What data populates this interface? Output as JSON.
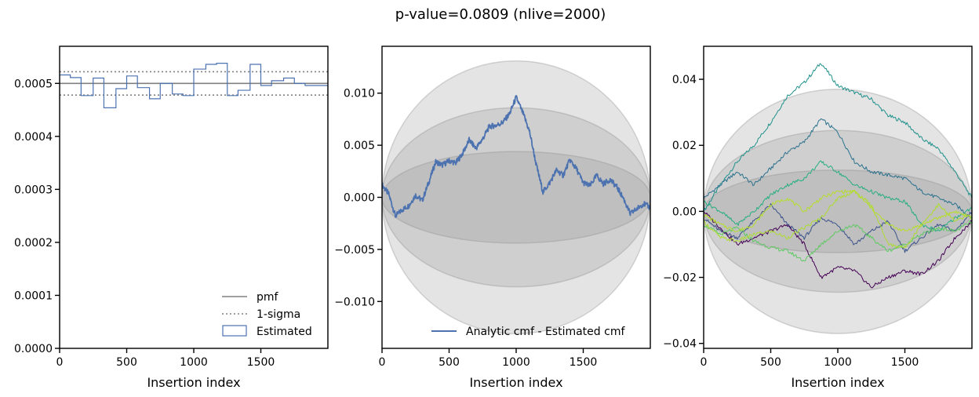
{
  "suptitle": "p-value=0.0809 (nlive=2000)",
  "chart_data": [
    {
      "type": "step",
      "xlabel": "Insertion index",
      "xlim": [
        0,
        2000
      ],
      "ylim": [
        0,
        0.00057
      ],
      "xticks": [
        "0",
        "500",
        "1000",
        "1500"
      ],
      "yticks": [
        "0.0000",
        "0.0001",
        "0.0002",
        "0.0003",
        "0.0004",
        "0.0005"
      ],
      "pmf": 0.0005,
      "sigma_band": [
        0.000478,
        0.000522
      ],
      "estimated": {
        "bin_edges": [
          0,
          80,
          160,
          250,
          330,
          420,
          500,
          580,
          670,
          750,
          840,
          920,
          1000,
          1090,
          1170,
          1250,
          1330,
          1420,
          1500,
          1580,
          1670,
          1750,
          1830,
          1920,
          2000
        ],
        "values": [
          0.000516,
          0.000511,
          0.000477,
          0.00051,
          0.000454,
          0.00049,
          0.000514,
          0.000492,
          0.000471,
          0.0005,
          0.00048,
          0.000477,
          0.000527,
          0.000536,
          0.000538,
          0.000477,
          0.000487,
          0.000536,
          0.000496,
          0.000505,
          0.00051,
          0.0005,
          0.000496,
          0.000496
        ]
      },
      "legend": [
        "pmf",
        "1-sigma",
        "Estimated"
      ],
      "legend_loc": "lower right",
      "colors": {
        "pmf": "#808080",
        "sigma": "#808080",
        "estimated": "#4c72b0"
      }
    },
    {
      "type": "line",
      "xlabel": "Insertion index",
      "xlim": [
        0,
        2000
      ],
      "ylim": [
        -0.0145,
        0.0145
      ],
      "xticks": [
        "0",
        "500",
        "1000",
        "1500"
      ],
      "yticks": [
        "−0.010",
        "−0.005",
        "0.000",
        "0.005",
        "0.010"
      ],
      "bands": [
        0.0131,
        0.0086,
        0.0044
      ],
      "series": [
        {
          "name": "Analytic cmf - Estimated cmf",
          "color": "#4c72b0",
          "x": [
            0,
            50,
            100,
            150,
            200,
            250,
            300,
            350,
            400,
            450,
            500,
            550,
            600,
            650,
            700,
            750,
            800,
            850,
            900,
            950,
            1000,
            1050,
            1100,
            1150,
            1200,
            1250,
            1300,
            1350,
            1400,
            1450,
            1500,
            1550,
            1600,
            1650,
            1700,
            1750,
            1800,
            1850,
            1900,
            1950,
            2000
          ],
          "y": [
            0.0012,
            0.0003,
            -0.0018,
            -0.0012,
            -0.0008,
            0.0002,
            -0.0003,
            0.0015,
            0.0034,
            0.0031,
            0.0035,
            0.0033,
            0.0042,
            0.0055,
            0.0047,
            0.0056,
            0.0068,
            0.0069,
            0.0072,
            0.008,
            0.0096,
            0.0081,
            0.0063,
            0.0031,
            0.0005,
            0.0014,
            0.0026,
            0.0021,
            0.0036,
            0.0027,
            0.0014,
            0.0011,
            0.0021,
            0.0013,
            0.0017,
            0.001,
            -0.0001,
            -0.0016,
            -0.0011,
            -0.0006,
            -0.001
          ]
        }
      ],
      "legend_loc": "lower right"
    },
    {
      "type": "line",
      "xlabel": "Insertion index",
      "xlim": [
        0,
        2000
      ],
      "ylim": [
        -0.0415,
        0.05
      ],
      "xticks": [
        "0",
        "500",
        "1000",
        "1500"
      ],
      "yticks": [
        "−0.04",
        "−0.02",
        "0.00",
        "0.02",
        "0.04"
      ],
      "bands": [
        0.037,
        0.0245,
        0.0125
      ],
      "series": [
        {
          "color": "#21918c",
          "x": [
            0,
            125,
            250,
            375,
            500,
            625,
            750,
            875,
            1000,
            1125,
            1250,
            1375,
            1500,
            1625,
            1750,
            1875,
            2000
          ],
          "y": [
            0.0,
            0.008,
            0.015,
            0.02,
            0.027,
            0.035,
            0.039,
            0.045,
            0.038,
            0.036,
            0.034,
            0.029,
            0.027,
            0.022,
            0.019,
            0.012,
            0.004
          ]
        },
        {
          "color": "#2c728e",
          "x": [
            0,
            125,
            250,
            375,
            500,
            625,
            750,
            875,
            1000,
            1125,
            1250,
            1375,
            1500,
            1625,
            1750,
            1875,
            2000
          ],
          "y": [
            0.004,
            0.008,
            0.012,
            0.008,
            0.013,
            0.018,
            0.021,
            0.028,
            0.024,
            0.015,
            0.012,
            0.011,
            0.01,
            0.006,
            0.004,
            0.002,
            -0.002
          ]
        },
        {
          "color": "#3b528b",
          "x": [
            0,
            125,
            250,
            375,
            500,
            625,
            750,
            875,
            1000,
            1125,
            1250,
            1375,
            1500,
            1625,
            1750,
            1875,
            2000
          ],
          "y": [
            -0.002,
            -0.006,
            -0.008,
            -0.003,
            0.002,
            -0.004,
            -0.008,
            -0.002,
            -0.004,
            -0.01,
            -0.006,
            -0.003,
            -0.012,
            -0.008,
            -0.004,
            -0.006,
            0.0
          ]
        },
        {
          "color": "#440154",
          "x": [
            0,
            125,
            250,
            375,
            500,
            625,
            750,
            875,
            1000,
            1125,
            1250,
            1375,
            1500,
            1625,
            1750,
            1875,
            2000
          ],
          "y": [
            0.0,
            -0.005,
            -0.01,
            -0.008,
            -0.006,
            -0.004,
            -0.01,
            -0.02,
            -0.017,
            -0.018,
            -0.023,
            -0.02,
            -0.018,
            -0.019,
            -0.015,
            -0.008,
            -0.003
          ]
        },
        {
          "color": "#28ae80",
          "x": [
            0,
            125,
            250,
            375,
            500,
            625,
            750,
            875,
            1000,
            1125,
            1250,
            1375,
            1500,
            1625,
            1750,
            1875,
            2000
          ],
          "y": [
            0.003,
            0.0,
            -0.004,
            0.0,
            0.005,
            0.008,
            0.01,
            0.015,
            0.012,
            0.008,
            0.006,
            0.004,
            0.003,
            -0.004,
            -0.006,
            -0.002,
            0.001
          ]
        },
        {
          "color": "#5ec962",
          "x": [
            0,
            125,
            250,
            375,
            500,
            625,
            750,
            875,
            1000,
            1125,
            1250,
            1375,
            1500,
            1625,
            1750,
            1875,
            2000
          ],
          "y": [
            -0.004,
            -0.007,
            -0.005,
            -0.009,
            -0.011,
            -0.012,
            -0.015,
            -0.01,
            -0.006,
            -0.004,
            -0.008,
            -0.012,
            -0.01,
            -0.007,
            -0.005,
            -0.006,
            -0.003
          ]
        },
        {
          "color": "#addc30",
          "x": [
            0,
            125,
            250,
            375,
            500,
            625,
            750,
            875,
            1000,
            1125,
            1250,
            1375,
            1500,
            1625,
            1750,
            1875,
            2000
          ],
          "y": [
            -0.003,
            -0.008,
            -0.009,
            -0.007,
            -0.006,
            -0.008,
            -0.005,
            -0.002,
            0.004,
            0.006,
            0.002,
            -0.01,
            -0.011,
            -0.004,
            0.002,
            -0.003,
            -0.001
          ]
        },
        {
          "color": "#b5de2b",
          "x": [
            0,
            125,
            250,
            375,
            500,
            625,
            750,
            875,
            1000,
            1125,
            1250,
            1375,
            1500,
            1625,
            1750,
            1875,
            2000
          ],
          "y": [
            -0.001,
            -0.004,
            -0.006,
            -0.004,
            0.002,
            0.004,
            0.0,
            0.004,
            0.006,
            0.006,
            0.001,
            -0.004,
            -0.006,
            -0.004,
            -0.002,
            0.0,
            -0.002
          ]
        }
      ]
    }
  ]
}
